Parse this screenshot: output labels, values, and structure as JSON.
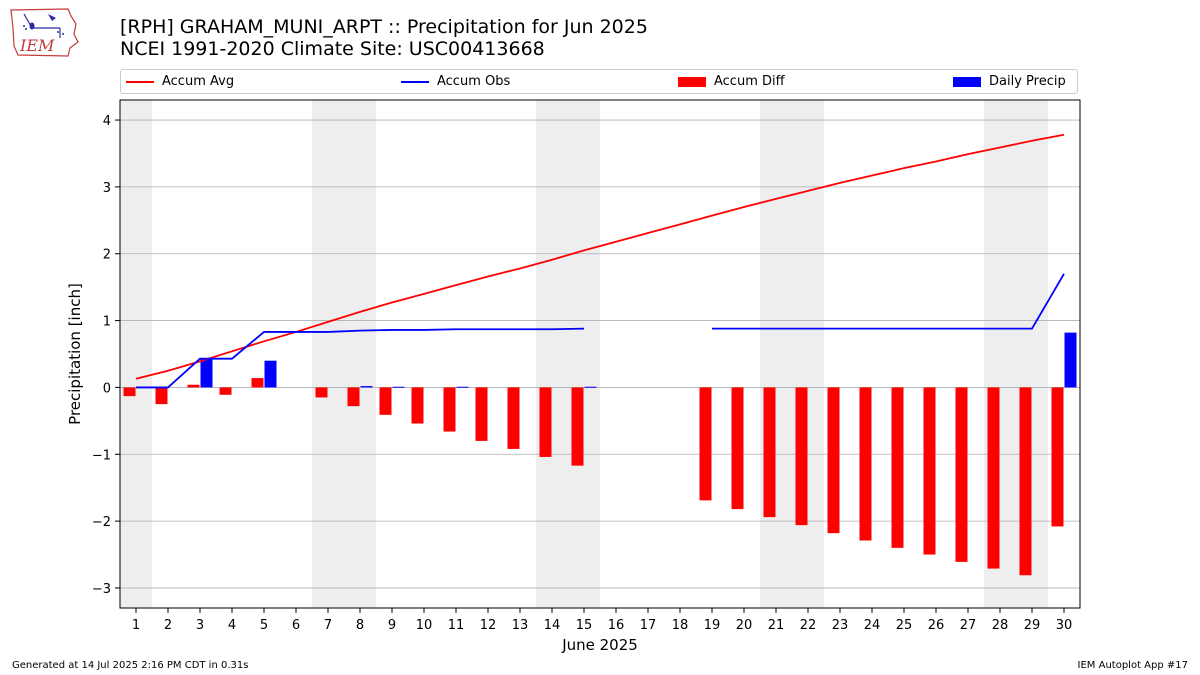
{
  "title_line1": "[RPH] GRAHAM_MUNI_ARPT :: Precipitation for Jun 2025",
  "title_line2": "NCEI 1991-2020 Climate Site: USC00413668",
  "logo_text": "IEM",
  "footer_left": "Generated at 14 Jul 2025 2:16 PM CDT in 0.31s",
  "footer_right": "IEM Autoplot App #17",
  "colors": {
    "avg": "#ff0000",
    "obs": "#0000ff",
    "diff": "#ff0000",
    "daily": "#0000ff",
    "weekend": "#eeeeee",
    "grid": "#b0b0b0"
  },
  "chart_data": {
    "type": "bar",
    "xlabel": "June 2025",
    "ylabel": "Precipitation [inch]",
    "xlim": [
      0.5,
      30.5
    ],
    "ylim": [
      -3.3,
      4.3
    ],
    "yticks": [
      -3,
      -2,
      -1,
      0,
      1,
      2,
      3,
      4
    ],
    "ytick_labels": [
      "−3",
      "−2",
      "−1",
      "0",
      "1",
      "2",
      "3",
      "4"
    ],
    "grid": "horizontal",
    "legend_position": "top",
    "days": [
      1,
      2,
      3,
      4,
      5,
      6,
      7,
      8,
      9,
      10,
      11,
      12,
      13,
      14,
      15,
      16,
      17,
      18,
      19,
      20,
      21,
      22,
      23,
      24,
      25,
      26,
      27,
      28,
      29,
      30
    ],
    "weekend_spans": [
      [
        0.5,
        1.5
      ],
      [
        6.5,
        8.5
      ],
      [
        13.5,
        15.5
      ],
      [
        20.5,
        22.5
      ],
      [
        27.5,
        29.5
      ]
    ],
    "series": [
      {
        "name": "Accum Avg",
        "kind": "line",
        "values": [
          0.13,
          0.25,
          0.39,
          0.54,
          0.69,
          0.83,
          0.98,
          1.13,
          1.27,
          1.4,
          1.53,
          1.66,
          1.78,
          1.91,
          2.05,
          2.18,
          2.31,
          2.44,
          2.57,
          2.7,
          2.82,
          2.94,
          3.06,
          3.17,
          3.28,
          3.38,
          3.49,
          3.59,
          3.69,
          3.78
        ]
      },
      {
        "name": "Accum Obs",
        "kind": "line",
        "values": [
          0.0,
          0.0,
          0.43,
          0.43,
          0.83,
          0.83,
          0.83,
          0.85,
          0.86,
          0.86,
          0.87,
          0.87,
          0.87,
          0.87,
          0.88,
          null,
          null,
          null,
          0.88,
          0.88,
          0.88,
          0.88,
          0.88,
          0.88,
          0.88,
          0.88,
          0.88,
          0.88,
          0.88,
          1.7
        ]
      },
      {
        "name": "Accum Diff",
        "kind": "bar",
        "values": [
          -0.13,
          -0.25,
          0.04,
          -0.11,
          0.14,
          0.0,
          -0.15,
          -0.28,
          -0.41,
          -0.54,
          -0.66,
          -0.8,
          -0.92,
          -1.04,
          -1.17,
          null,
          null,
          null,
          -1.69,
          -1.82,
          -1.94,
          -2.06,
          -2.18,
          -2.29,
          -2.4,
          -2.5,
          -2.61,
          -2.71,
          -2.81,
          -2.08
        ]
      },
      {
        "name": "Daily Precip",
        "kind": "bar",
        "values": [
          0.0,
          0.0,
          0.43,
          0.0,
          0.4,
          0.0,
          0.0,
          0.02,
          0.01,
          0.0,
          0.01,
          0.0,
          0.0,
          0.0,
          0.01,
          null,
          null,
          null,
          0.0,
          0.0,
          0.0,
          0.0,
          0.0,
          0.0,
          0.0,
          0.0,
          0.0,
          0.0,
          0.0,
          0.82
        ]
      }
    ]
  }
}
